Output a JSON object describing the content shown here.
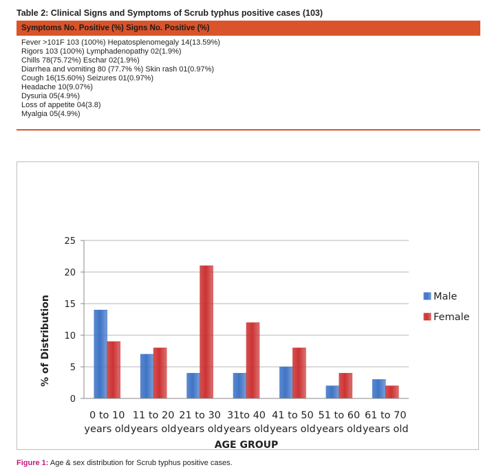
{
  "table": {
    "title": "Table 2: Clinical Signs and Symptoms of Scrub typhus positive cases (103)",
    "header": "Symptoms No. Positive (%) Signs No. Positive (%)",
    "rows": [
      "Fever >101F 103 (100%) Hepatosplenomegaly 14(13.59%)",
      "Rigors 103 (100%) Lymphadenopathy 02(1.9%)",
      "Chills 78(75.72%) Eschar 02(1.9%)",
      "Diarrhea and vomiting 80 (77.7% %) Skin rash 01(0.97%)",
      "Cough 16(15.60%) Seizures 01(0.97%)",
      "Headache 10(9.07%)",
      "Dysuria 05(4.9%)",
      "Loss of appetite 04(3.8)",
      "Myalgia 05(4.9%)"
    ],
    "accent_color": "#d9542b"
  },
  "figure": {
    "caption_label": "Figure 1:",
    "caption_text": "Age & sex distribution for Scrub typhus positive cases."
  },
  "chart_data": {
    "type": "bar",
    "categories": [
      [
        "0 to 10",
        "years old"
      ],
      [
        "11 to 20",
        "years old"
      ],
      [
        "21 to 30",
        "years old"
      ],
      [
        "31to 40",
        "years old"
      ],
      [
        "41 to 50",
        "years old"
      ],
      [
        "51 to 60",
        "years old"
      ],
      [
        "61 to 70",
        "years old"
      ]
    ],
    "series": [
      {
        "name": "Male",
        "values": [
          14,
          7,
          4,
          4,
          5,
          2,
          3
        ],
        "color": "#3f74c6"
      },
      {
        "name": "Female",
        "values": [
          9,
          8,
          21,
          12,
          8,
          4,
          2
        ],
        "color": "#cc3333"
      }
    ],
    "yticks": [
      0,
      5,
      10,
      15,
      20,
      25
    ],
    "ylim": [
      0,
      25
    ],
    "xlabel": "AGE GROUP",
    "ylabel": "% of Distribution",
    "legend": "right",
    "grid": true
  }
}
